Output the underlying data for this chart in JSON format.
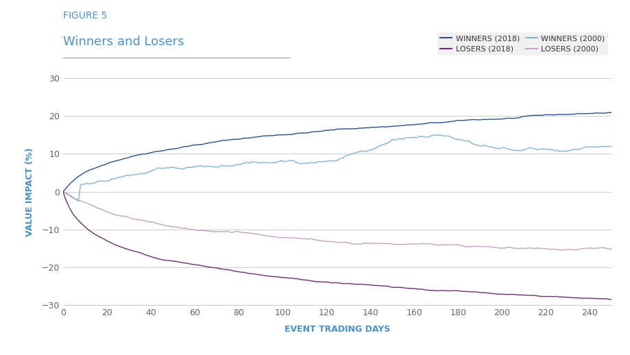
{
  "title_line1": "FIGURE 5",
  "title_line2": "Winners and Losers",
  "xlabel": "EVENT TRADING DAYS",
  "ylabel": "VALUE IMPACT (%)",
  "ylim": [
    -30,
    30
  ],
  "xlim": [
    0,
    250
  ],
  "xticks": [
    0,
    20,
    40,
    60,
    80,
    100,
    120,
    140,
    160,
    180,
    200,
    220,
    240
  ],
  "yticks": [
    -30,
    -20,
    -10,
    0,
    10,
    20,
    30
  ],
  "colors": {
    "winners_2018": "#2b4d8e",
    "winners_2000": "#7fb3d3",
    "losers_2018": "#6b2d6b",
    "losers_2000": "#c4a0c4"
  },
  "background_color": "#ffffff",
  "grid_color": "#cccccc",
  "title_color": "#4a90c4",
  "axis_label_color": "#4a90c4",
  "legend_bg": "#eeeeee",
  "n_points": 251,
  "seed": 42
}
